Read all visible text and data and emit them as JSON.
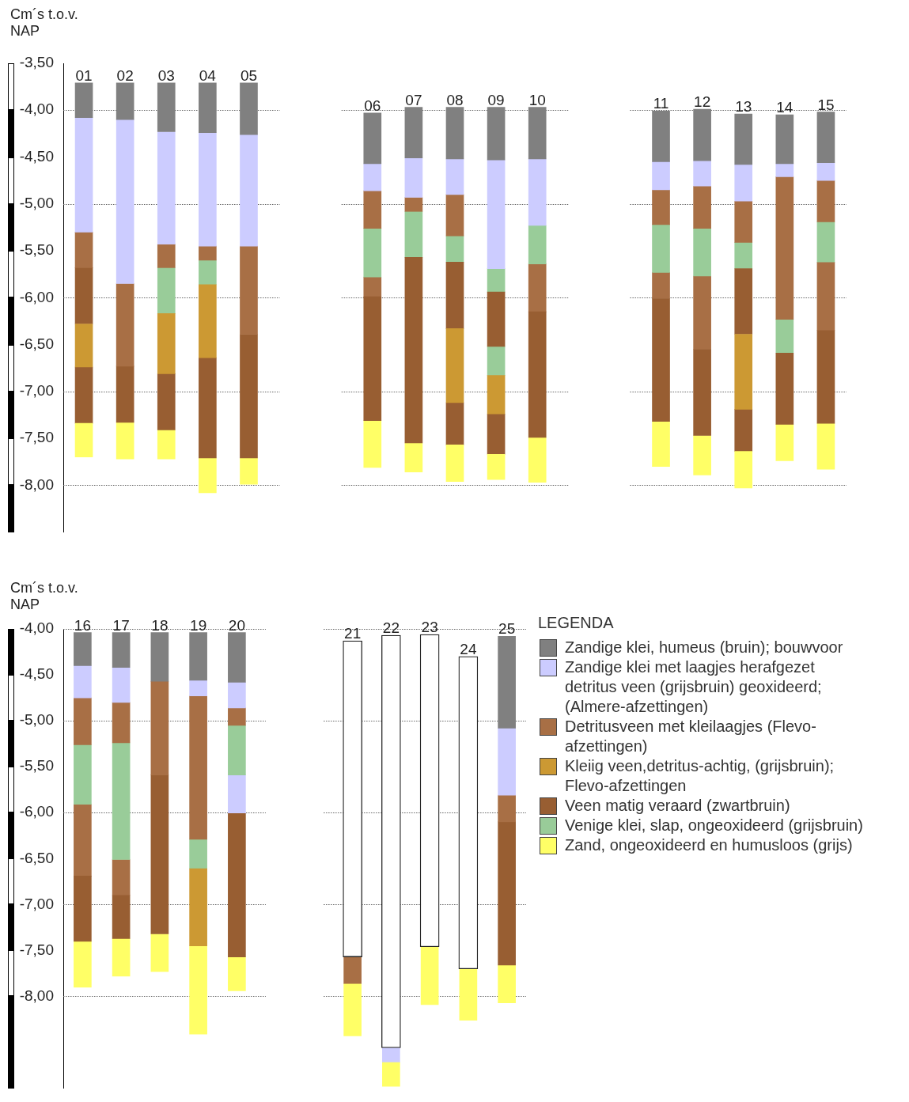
{
  "chart_data": [
    {
      "type": "bar",
      "ylabel": "Cm´s t.o.v. NAP",
      "categories": [
        "01",
        "02",
        "03",
        "04",
        "05",
        null,
        null,
        "06",
        "07",
        "08",
        "09",
        "10",
        null,
        null,
        "11",
        "12",
        "13",
        "14",
        "15"
      ],
      "ylim": [
        -8.5,
        -3.5
      ],
      "yticks": [
        {
          "value": -3.5,
          "label": "-3,50"
        },
        {
          "value": -4,
          "label": "-4,00"
        },
        {
          "value": -4.5,
          "label": "-4,50"
        },
        {
          "value": -5,
          "label": "-5,00"
        },
        {
          "value": -5.5,
          "label": "-5,50"
        },
        {
          "value": -6,
          "label": "-6,00"
        },
        {
          "value": -6.5,
          "label": "-6,50"
        },
        {
          "value": -7,
          "label": "-7,00"
        },
        {
          "value": -7.5,
          "label": "-7,50"
        },
        {
          "value": -8,
          "label": "-8,00"
        }
      ],
      "grid": "y",
      "series": [
        {
          "color": "#808080",
          "base": [
            -3.71,
            -3.71,
            -3.71,
            -3.71,
            -3.71,
            null,
            null,
            -4.03,
            -3.97,
            -3.97,
            -3.97,
            -3.97,
            null,
            null,
            -4.01,
            -3.99,
            -4.04,
            -4.05,
            -4.02
          ],
          "values": [
            -0.37,
            -0.39,
            -0.52,
            -0.53,
            -0.55,
            null,
            null,
            -0.54,
            -0.54,
            -0.55,
            -0.56,
            -0.55,
            null,
            null,
            -0.54,
            -0.55,
            -0.54,
            -0.52,
            -0.54
          ]
        },
        {
          "color": "#ccccff",
          "base": [
            -4.08,
            -4.1,
            -4.23,
            -4.24,
            -4.26,
            null,
            null,
            -4.57,
            -4.51,
            -4.52,
            -4.53,
            -4.52,
            null,
            null,
            -4.55,
            -4.54,
            -4.58,
            -4.57,
            -4.56
          ],
          "values": [
            -1.22,
            -1.75,
            -1.2,
            -1.21,
            -1.19,
            null,
            null,
            -0.29,
            -0.42,
            -0.38,
            -1.16,
            -0.71,
            null,
            null,
            -0.3,
            -0.27,
            -0.39,
            -0.14,
            -0.19
          ]
        },
        {
          "color": "#a86f45",
          "base": [
            -5.3,
            -5.85,
            -5.43,
            -5.45,
            -5.45,
            null,
            null,
            -4.86,
            -4.93,
            -4.9,
            null,
            null,
            null,
            null,
            -4.85,
            -4.81,
            -4.97,
            -4.71,
            -4.75
          ],
          "values": [
            -0.38,
            -0.88,
            -0.25,
            -0.15,
            -0.94,
            null,
            null,
            -0.4,
            -0.15,
            -0.44,
            null,
            null,
            null,
            null,
            -0.37,
            -0.45,
            -0.44,
            -1.52,
            -0.44
          ]
        },
        {
          "color": "#cc9933",
          "base": [
            -6.28,
            null,
            -6.17,
            -5.86,
            null,
            null,
            null,
            null,
            null,
            -6.33,
            -6.83,
            null,
            null,
            null,
            null,
            null,
            -6.39,
            null,
            null
          ],
          "values": [
            -0.46,
            null,
            -0.64,
            -0.78,
            null,
            null,
            null,
            null,
            null,
            -0.79,
            -0.41,
            null,
            null,
            null,
            null,
            null,
            -0.8,
            null,
            null
          ]
        },
        {
          "color": "#985e32",
          "base": [
            -5.68,
            -6.73,
            -6.81,
            -6.64,
            -6.39,
            null,
            null,
            -5.99,
            -5.57,
            -5.62,
            -5.94,
            -6.15,
            null,
            null,
            -6.01,
            -6.55,
            -5.69,
            -6.59,
            -6.35
          ],
          "values": [
            -0.6,
            -0.6,
            -0.6,
            -1.07,
            -1.32,
            null,
            null,
            -1.32,
            -1.98,
            -0.71,
            -0.58,
            -1.34,
            null,
            null,
            -1.31,
            -0.92,
            -0.7,
            -0.76,
            -0.99
          ]
        },
        {
          "color": "#99cc99",
          "base": [
            null,
            null,
            -5.68,
            -5.6,
            null,
            null,
            null,
            -5.26,
            -5.08,
            -5.34,
            -5.69,
            -5.23,
            null,
            null,
            -5.22,
            -5.26,
            -5.41,
            -6.23,
            -5.19
          ],
          "values": [
            null,
            null,
            -0.49,
            -0.26,
            null,
            null,
            null,
            -0.52,
            -0.49,
            -0.28,
            -0.25,
            -0.41,
            null,
            null,
            -0.51,
            -0.51,
            -0.28,
            -0.36,
            -0.43
          ]
        },
        {
          "color": "#ffff66",
          "base": [
            -7.34,
            -7.33,
            -7.41,
            -7.71,
            -7.71,
            null,
            null,
            -7.31,
            -7.55,
            -7.57,
            -7.67,
            -7.49,
            null,
            null,
            -7.32,
            -7.47,
            -7.64,
            -7.35,
            -7.34
          ],
          "values": [
            -0.36,
            -0.39,
            -0.31,
            -0.37,
            -0.28,
            null,
            null,
            -0.5,
            -0.31,
            -0.39,
            -0.27,
            -0.48,
            null,
            null,
            -0.48,
            -0.42,
            -0.39,
            -0.39,
            -0.49
          ]
        },
        {
          "color": "#a86f45",
          "base": [
            null,
            null,
            null,
            null,
            null,
            null,
            null,
            -5.78,
            null,
            null,
            null,
            -5.64,
            null,
            null,
            -5.73,
            -5.77,
            null,
            null,
            -5.62
          ],
          "values": [
            null,
            null,
            null,
            null,
            null,
            null,
            null,
            -0.21,
            null,
            null,
            null,
            -0.51,
            null,
            null,
            -0.28,
            -0.78,
            null,
            null,
            -0.73
          ]
        },
        {
          "color": "#985e32",
          "base": [
            -6.74,
            null,
            null,
            null,
            null,
            null,
            null,
            null,
            null,
            -7.12,
            -7.24,
            null,
            null,
            null,
            null,
            null,
            -7.19,
            null,
            null
          ],
          "values": [
            -0.6,
            null,
            null,
            null,
            null,
            null,
            null,
            null,
            null,
            -0.45,
            -0.43,
            null,
            null,
            null,
            null,
            null,
            -0.45,
            null,
            null
          ]
        },
        {
          "color": "#99cc99",
          "base": [
            null,
            null,
            null,
            null,
            null,
            null,
            null,
            null,
            null,
            null,
            -6.52,
            null,
            null,
            null,
            null,
            null,
            null,
            null,
            null
          ],
          "values": [
            null,
            null,
            null,
            null,
            null,
            null,
            null,
            null,
            null,
            null,
            -0.31,
            null,
            null,
            null,
            null,
            null,
            null,
            null,
            null
          ]
        }
      ]
    },
    {
      "type": "bar",
      "ylabel": "Cm´s t.o.v. NAP",
      "legend": "right",
      "legend_title": "LEGENDA",
      "categories": [
        "16",
        "17",
        "18",
        "19",
        "20",
        null,
        null,
        "21",
        "22",
        "23",
        "24",
        "25"
      ],
      "ylim": [
        -9,
        -4
      ],
      "yticks": [
        {
          "value": -4,
          "label": "-4,00"
        },
        {
          "value": -4.5,
          "label": "-4,50"
        },
        {
          "value": -5,
          "label": "-5,00"
        },
        {
          "value": -5.5,
          "label": "-5,50"
        },
        {
          "value": -6,
          "label": "-6,00"
        },
        {
          "value": -6.5,
          "label": "-6,50"
        },
        {
          "value": -7,
          "label": "-7,00"
        },
        {
          "value": -7.5,
          "label": "-7,50"
        },
        {
          "value": -8,
          "label": "-8,00"
        }
      ],
      "grid": "y",
      "series": [
        {
          "name": "Zandige klei, humeus (bruin); bouwvoor",
          "color": "#808080",
          "base": [
            -4.04,
            -4.04,
            -4.04,
            -4.04,
            -4.04,
            null,
            null,
            null,
            null,
            null,
            null,
            -4.08
          ],
          "values": [
            -0.36,
            -0.38,
            -0.53,
            -0.52,
            -0.54,
            null,
            null,
            null,
            null,
            null,
            null,
            -1.0
          ]
        },
        {
          "name": "Zandige klei met laagjes herafgezet detritus veen (grijsbruin) geoxideerd; (Almere-afzettingen)",
          "color": "#ccccff",
          "base": [
            -4.4,
            -4.42,
            null,
            -4.56,
            -4.58,
            null,
            null,
            null,
            null,
            null,
            null,
            -5.08
          ],
          "values": [
            -0.35,
            -0.38,
            null,
            -0.17,
            -0.28,
            null,
            null,
            null,
            null,
            null,
            null,
            -0.73
          ]
        },
        {
          "name": "Detritusveen met kleilaagjes (Flevo-afzettingen)",
          "color": "#a86f45",
          "base": [
            -4.75,
            -4.8,
            -4.57,
            -4.73,
            -4.86,
            null,
            null,
            -7.57,
            null,
            null,
            null,
            -5.81
          ],
          "values": [
            -0.51,
            -0.44,
            -1.02,
            -1.56,
            -0.19,
            null,
            null,
            -0.29,
            null,
            null,
            null,
            -0.29
          ]
        },
        {
          "name": "Kleiig veen,detritus-achtig, (grijsbruin); Flevo-afzettingen",
          "color": "#cc9933",
          "base": [
            null,
            null,
            null,
            -6.61,
            null,
            null,
            null,
            null,
            null,
            null,
            null,
            null
          ],
          "values": [
            null,
            null,
            null,
            -0.84,
            null,
            null,
            null,
            null,
            null,
            null,
            null,
            null
          ]
        },
        {
          "name": "Veen matig veraard (zwartbruin)",
          "color": "#985e32",
          "base": [
            -6.69,
            -6.9,
            -5.59,
            null,
            -6.01,
            null,
            null,
            null,
            null,
            null,
            null,
            -6.1
          ],
          "values": [
            -0.71,
            -0.47,
            -1.73,
            null,
            -1.56,
            null,
            null,
            null,
            null,
            null,
            null,
            -1.56
          ]
        },
        {
          "name": "Venige klei, slap, ongeoxideerd (grijsbruin)",
          "color": "#99cc99",
          "base": [
            -5.26,
            -5.24,
            null,
            -6.29,
            -5.05,
            null,
            null,
            null,
            null,
            null,
            null,
            null
          ],
          "values": [
            -0.65,
            -1.27,
            null,
            -0.32,
            -0.54,
            null,
            null,
            null,
            null,
            null,
            null,
            null
          ]
        },
        {
          "name": "Zand, ongeoxideerd en humusloos (grijs)",
          "color": "#ffff66",
          "base": [
            -7.4,
            -7.37,
            -7.32,
            -7.45,
            -7.57,
            null,
            null,
            -7.86,
            -8.72,
            -7.46,
            -7.7,
            -7.66
          ],
          "values": [
            -0.5,
            -0.41,
            -0.41,
            -0.96,
            -0.37,
            null,
            null,
            -0.57,
            -0.26,
            -0.63,
            -0.56,
            -0.41
          ]
        },
        {
          "color": "#a86f45",
          "base": [
            -5.91,
            -6.51,
            null,
            null,
            null,
            null,
            null,
            null,
            null,
            null,
            null,
            null
          ],
          "values": [
            -0.78,
            -0.39,
            null,
            null,
            null,
            null,
            null,
            null,
            null,
            null,
            null,
            null
          ]
        },
        {
          "color": "#ccccff",
          "base": [
            null,
            null,
            null,
            null,
            -5.59,
            null,
            null,
            null,
            null,
            null,
            null,
            null
          ],
          "values": [
            null,
            null,
            null,
            null,
            -0.42,
            null,
            null,
            null,
            null,
            null,
            null,
            null
          ]
        },
        {
          "color": "#ffffff",
          "base": [
            null,
            null,
            null,
            null,
            null,
            null,
            null,
            -4.13,
            -4.07,
            -4.06,
            -4.3,
            null
          ],
          "values": [
            null,
            null,
            null,
            null,
            null,
            null,
            null,
            -3.44,
            -4.49,
            -3.4,
            -3.4,
            null
          ]
        },
        {
          "color": "#ccccff",
          "base": [
            null,
            null,
            null,
            null,
            null,
            null,
            null,
            null,
            -8.56,
            null,
            null,
            null
          ],
          "values": [
            null,
            null,
            null,
            null,
            null,
            null,
            null,
            null,
            -0.16,
            null,
            null,
            null
          ]
        }
      ]
    }
  ]
}
